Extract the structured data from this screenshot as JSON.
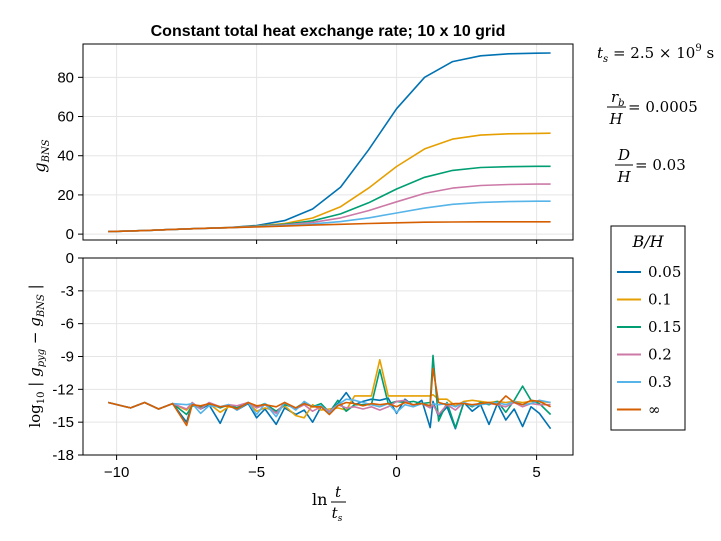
{
  "chart_data": {
    "type": "line",
    "title": "Constant total heat exchange rate; 10 x 10 grid",
    "xlabel": "ln t/t_s",
    "annotations": {
      "ts": {
        "prefix": "t",
        "sub": "s",
        "eq": " = 2.5 × 10",
        "sup": "9",
        "unit": " s"
      },
      "rb": {
        "num": "r",
        "numsub": "b",
        "den": "H",
        "value": " = 0.0005"
      },
      "d": {
        "num": "D",
        "den": "H",
        "value": " = 0.03"
      }
    },
    "legend": {
      "title": "B/H",
      "placement": "right",
      "entries": [
        "0.05",
        "0.1",
        "0.15",
        "0.2",
        "0.3",
        "∞"
      ]
    },
    "colors": [
      "#0072b2",
      "#e69f00",
      "#009e73",
      "#cc79a7",
      "#56b4e9",
      "#d55e00"
    ],
    "x_ticks": [
      "−10",
      "−5",
      "0",
      "5"
    ],
    "x_tick_values": [
      -10,
      -5,
      0,
      5
    ],
    "xlim": [
      -11.2,
      6.3
    ],
    "top_panel": {
      "ylabel": "g_BNS",
      "ylim": [
        -3,
        97
      ],
      "y_ticks": [
        "0",
        "20",
        "40",
        "60",
        "80"
      ],
      "y_tick_values": [
        0,
        20,
        40,
        60,
        80
      ],
      "x": [
        -10.3,
        -9,
        -8,
        -7,
        -6,
        -5,
        -4,
        -3,
        -2,
        -1,
        0,
        1,
        2,
        3,
        4,
        5,
        5.5
      ],
      "series": [
        {
          "name": "0.05",
          "values": [
            1.3,
            1.8,
            2.4,
            2.9,
            3.4,
            4.4,
            6.9,
            12.8,
            24,
            43,
            64,
            80,
            88,
            91,
            92,
            92.3,
            92.4
          ]
        },
        {
          "name": "0.1",
          "values": [
            1.3,
            1.8,
            2.4,
            2.9,
            3.4,
            4.1,
            5.4,
            8.2,
            14,
            23.5,
            34.5,
            43.5,
            48.5,
            50.5,
            51.2,
            51.4,
            51.5
          ]
        },
        {
          "name": "0.15",
          "values": [
            1.3,
            1.8,
            2.4,
            2.9,
            3.3,
            4.0,
            5.0,
            6.8,
            10.3,
            16,
            23,
            29,
            32.5,
            34,
            34.4,
            34.6,
            34.6
          ]
        },
        {
          "name": "0.2",
          "values": [
            1.3,
            1.8,
            2.4,
            2.9,
            3.3,
            3.9,
            4.7,
            6.0,
            8.3,
            12,
            16.5,
            20.8,
            23.5,
            24.8,
            25.3,
            25.5,
            25.5
          ]
        },
        {
          "name": "0.3",
          "values": [
            1.3,
            1.8,
            2.4,
            2.9,
            3.3,
            3.8,
            4.4,
            5.2,
            6.4,
            8.3,
            10.8,
            13.3,
            15.2,
            16.2,
            16.6,
            16.8,
            16.8
          ]
        },
        {
          "name": "∞",
          "values": [
            1.3,
            1.8,
            2.4,
            2.9,
            3.3,
            3.7,
            4.1,
            4.6,
            5.0,
            5.4,
            5.8,
            6.1,
            6.2,
            6.3,
            6.3,
            6.3,
            6.3
          ]
        }
      ]
    },
    "bottom_panel": {
      "ylabel": "log10 |g_pyg − g_BNS|",
      "ylim": [
        -18,
        0
      ],
      "y_ticks": [
        "0",
        "-3",
        "-6",
        "-9",
        "-12",
        "-15",
        "-18"
      ],
      "y_tick_values": [
        0,
        -3,
        -6,
        -9,
        -12,
        -15,
        -18
      ],
      "x": [
        -10.3,
        -9.5,
        -9,
        -8.5,
        -8,
        -7.5,
        -7.3,
        -7,
        -6.7,
        -6.3,
        -6,
        -5.7,
        -5.3,
        -5,
        -4.7,
        -4.3,
        -4,
        -3.6,
        -3.3,
        -3,
        -2.7,
        -2.4,
        -2.1,
        -1.8,
        -1.5,
        -1.2,
        -0.9,
        -0.6,
        -0.3,
        0,
        0.3,
        0.6,
        0.9,
        1.2,
        1.3,
        1.5,
        1.8,
        2.1,
        2.4,
        2.7,
        3,
        3.3,
        3.6,
        3.9,
        4.2,
        4.5,
        4.8,
        5.1,
        5.5
      ],
      "series": [
        {
          "name": "0.05",
          "values": [
            -13.2,
            -13.7,
            -13.2,
            -13.8,
            -13.3,
            -15.0,
            -13.3,
            -13.8,
            -13.4,
            -15.1,
            -13.4,
            -13.9,
            -13.3,
            -14.6,
            -13.8,
            -15.2,
            -13.7,
            -14.3,
            -13.9,
            -15.0,
            -13.6,
            -14.1,
            -13.3,
            -12.3,
            -13.4,
            -13.1,
            -12.9,
            -13.0,
            -12.8,
            -14.2,
            -12.9,
            -13.5,
            -13.0,
            -15.5,
            -13.1,
            -14.5,
            -13.6,
            -15.6,
            -13.2,
            -14.0,
            -13.4,
            -15.2,
            -13.3,
            -14.8,
            -13.8,
            -15.4,
            -13.6,
            -14.2,
            -15.6
          ]
        },
        {
          "name": "0.1",
          "values": [
            -13.2,
            -13.7,
            -13.2,
            -13.8,
            -13.3,
            -13.9,
            -13.4,
            -13.7,
            -13.3,
            -14.1,
            -13.6,
            -13.7,
            -13.2,
            -14.0,
            -13.7,
            -14.0,
            -13.5,
            -14.4,
            -14.6,
            -13.4,
            -13.9,
            -13.8,
            -13.7,
            -13.9,
            -12.6,
            -12.6,
            -12.6,
            -9.3,
            -12.6,
            -12.6,
            -12.6,
            -12.6,
            -12.6,
            -12.6,
            -12.5,
            -12.9,
            -12.9,
            -13.5,
            -13.1,
            -13.0,
            -13.1,
            -13.2,
            -13.1,
            -13.2,
            -13.1,
            -13.2,
            -13.1,
            -13.1,
            -13.2
          ]
        },
        {
          "name": "0.15",
          "values": [
            -13.2,
            -13.7,
            -13.2,
            -13.8,
            -13.3,
            -14.3,
            -13.5,
            -13.6,
            -13.3,
            -13.7,
            -13.4,
            -13.7,
            -13.2,
            -13.6,
            -13.3,
            -14.0,
            -13.4,
            -13.7,
            -13.2,
            -13.6,
            -13.3,
            -14.1,
            -13.0,
            -14.0,
            -13.4,
            -13.4,
            -13.4,
            -10.2,
            -13.3,
            -13.1,
            -13.2,
            -13.1,
            -13.3,
            -13.2,
            -8.9,
            -14.9,
            -13.2,
            -15.5,
            -13.2,
            -13.6,
            -13.2,
            -13.4,
            -13.1,
            -14.1,
            -13.0,
            -11.7,
            -13.0,
            -13.3,
            -14.3
          ]
        },
        {
          "name": "0.2",
          "values": [
            -13.2,
            -13.7,
            -13.2,
            -13.8,
            -13.3,
            -13.8,
            -13.2,
            -13.8,
            -13.2,
            -13.6,
            -13.4,
            -13.5,
            -13.2,
            -13.7,
            -13.4,
            -14.2,
            -13.2,
            -13.8,
            -13.4,
            -14.0,
            -13.6,
            -14.0,
            -13.4,
            -13.7,
            -13.6,
            -13.8,
            -13.6,
            -13.9,
            -13.6,
            -13.1,
            -13.0,
            -13.5,
            -13.3,
            -13.7,
            -13.4,
            -14.3,
            -13.4,
            -13.9,
            -13.2,
            -13.5,
            -13.3,
            -13.3,
            -13.4,
            -13.6,
            -13.2,
            -13.6,
            -13.3,
            -13.4,
            -13.4
          ]
        },
        {
          "name": "0.3",
          "values": [
            -13.2,
            -13.7,
            -13.2,
            -13.8,
            -13.3,
            -13.4,
            -13.3,
            -14.2,
            -13.5,
            -13.6,
            -13.4,
            -13.9,
            -13.2,
            -14.3,
            -13.3,
            -14.5,
            -13.2,
            -13.9,
            -13.1,
            -13.6,
            -13.5,
            -14.2,
            -13.4,
            -12.9,
            -13.0,
            -13.2,
            -13.4,
            -13.6,
            -13.3,
            -14.1,
            -13.4,
            -13.6,
            -13.3,
            -13.5,
            -13.3,
            -13.4,
            -13.3,
            -13.6,
            -13.2,
            -13.5,
            -13.4,
            -13.3,
            -13.2,
            -13.4,
            -13.1,
            -13.4,
            -13.3,
            -13.0,
            -13.2
          ]
        },
        {
          "name": "∞",
          "values": [
            -13.2,
            -13.7,
            -13.2,
            -13.8,
            -13.3,
            -15.3,
            -13.4,
            -13.5,
            -13.3,
            -13.6,
            -13.5,
            -13.8,
            -13.2,
            -13.5,
            -13.4,
            -13.6,
            -13.2,
            -13.7,
            -13.3,
            -13.6,
            -13.6,
            -14.3,
            -13.5,
            -13.2,
            -13.3,
            -13.5,
            -13.3,
            -13.4,
            -13.3,
            -13.6,
            -13.2,
            -13.4,
            -13.3,
            -13.5,
            -10.1,
            -13.2,
            -13.4,
            -13.3,
            -13.3,
            -13.4,
            -13.3,
            -13.2,
            -13.4,
            -12.6,
            -13.2,
            -13.4,
            -13.0,
            -13.1,
            -13.6
          ]
        }
      ]
    }
  }
}
